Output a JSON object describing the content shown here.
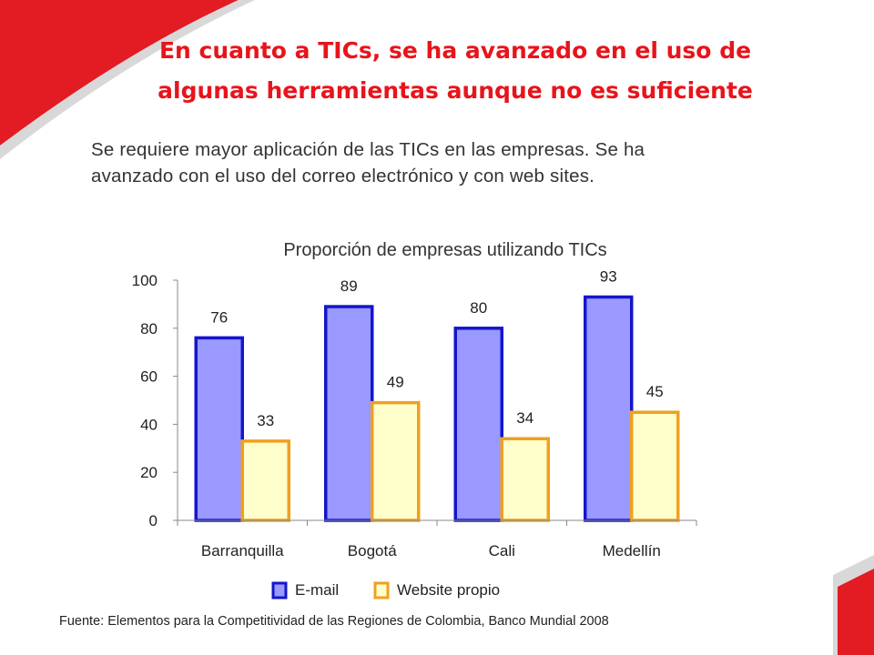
{
  "slide": {
    "title_line1": "En cuanto a TICs, se ha avanzado en el uso de",
    "title_line2": "algunas herramientas aunque no es suficiente",
    "subtitle_line1": "Se requiere mayor aplicación de las TICs en las empresas. Se ha",
    "subtitle_line2": "avanzado con el uso del correo electrónico y con web sites.",
    "source": "Fuente: Elementos para la Competitividad de las Regiones de Colombia, Banco Mundial 2008"
  },
  "colors": {
    "title": "#e8141b",
    "accent_red": "#e31b23",
    "email_fill": "#9999ff",
    "email_stroke": "#1515cc",
    "web_fill": "#ffffcc",
    "web_stroke": "#f0a020"
  },
  "chart_data": {
    "type": "bar",
    "title": "Proporción de empresas utilizando TICs",
    "categories": [
      "Barranquilla",
      "Bogotá",
      "Cali",
      "Medellín"
    ],
    "series": [
      {
        "name": "E-mail",
        "values": [
          76,
          89,
          80,
          93
        ]
      },
      {
        "name": "Website propio",
        "values": [
          33,
          49,
          34,
          45
        ]
      }
    ],
    "ylim": [
      0,
      100
    ],
    "yticks": [
      0,
      20,
      40,
      60,
      80,
      100
    ],
    "grid": false,
    "legend": "bottom"
  }
}
